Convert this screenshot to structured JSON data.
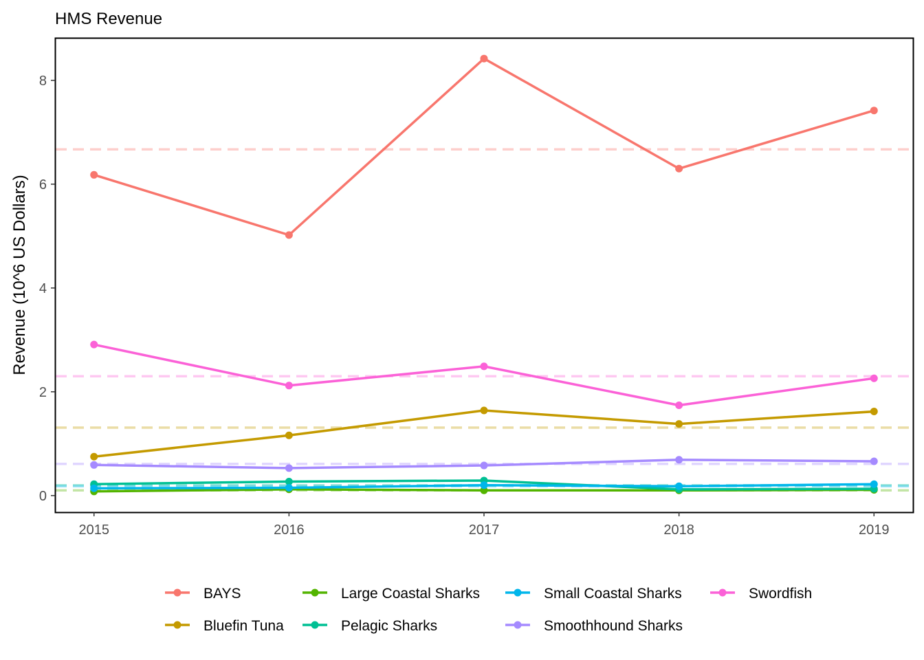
{
  "chart_data": {
    "type": "line",
    "title": "HMS Revenue",
    "xlabel": "",
    "ylabel": "Revenue (10^6 US Dollars)",
    "x": [
      2015,
      2016,
      2017,
      2018,
      2019
    ],
    "x_tick_labels": [
      "2015",
      "2016",
      "2017",
      "2018",
      "2019"
    ],
    "y_ticks": [
      0,
      2,
      4,
      6,
      8
    ],
    "y_tick_labels": [
      "0",
      "2",
      "4",
      "6",
      "8"
    ],
    "ylim": [
      -0.32,
      8.82
    ],
    "xlim": [
      2014.8,
      2019.2
    ],
    "grid": false,
    "legend_position": "bottom",
    "series": [
      {
        "name": "BAYS",
        "color": "#F8766D",
        "values": [
          6.18,
          5.02,
          8.42,
          6.3,
          7.42
        ],
        "mean": 6.67
      },
      {
        "name": "Bluefin Tuna",
        "color": "#C49A00",
        "values": [
          0.75,
          1.16,
          1.64,
          1.38,
          1.62
        ],
        "mean": 1.31
      },
      {
        "name": "Large Coastal Sharks",
        "color": "#53B400",
        "values": [
          0.08,
          0.12,
          0.1,
          0.1,
          0.11
        ],
        "mean": 0.1
      },
      {
        "name": "Pelagic Sharks",
        "color": "#00C094",
        "values": [
          0.22,
          0.27,
          0.29,
          0.12,
          0.13
        ],
        "mean": 0.2
      },
      {
        "name": "Small Coastal  Sharks",
        "color": "#00B6EB",
        "values": [
          0.14,
          0.15,
          0.2,
          0.18,
          0.22
        ],
        "mean": 0.18
      },
      {
        "name": "Smoothhound Sharks",
        "color": "#A58AFF",
        "values": [
          0.59,
          0.53,
          0.58,
          0.69,
          0.66
        ],
        "mean": 0.61
      },
      {
        "name": "Swordfish",
        "color": "#FB61D7",
        "values": [
          2.91,
          2.12,
          2.49,
          1.74,
          2.26
        ],
        "mean": 2.3
      }
    ]
  }
}
